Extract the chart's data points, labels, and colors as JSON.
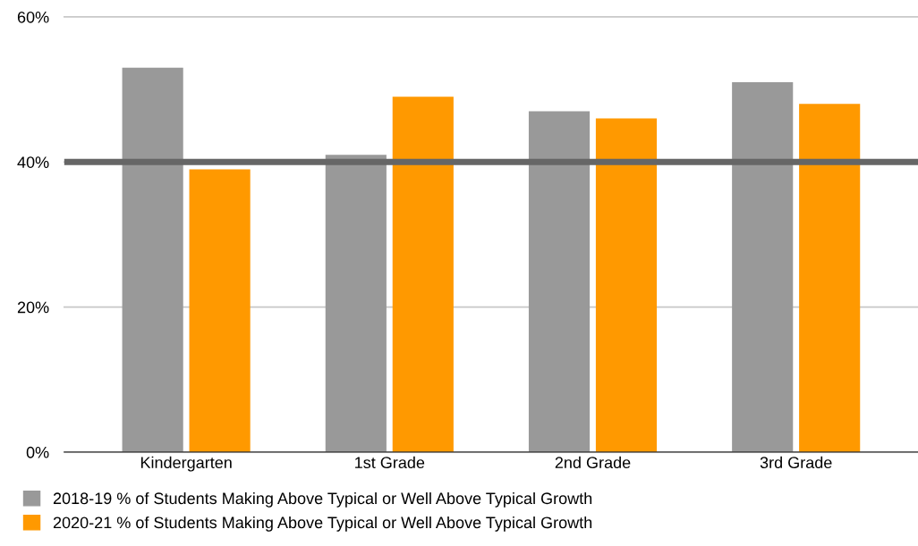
{
  "chart_data": {
    "type": "bar",
    "categories": [
      "Kindergarten",
      "1st Grade",
      "2nd Grade",
      "3rd Grade"
    ],
    "series": [
      {
        "name": "2018-19 % of Students Making Above Typical or Well Above Typical Growth",
        "color": "#999999",
        "values": [
          53,
          41,
          47,
          51
        ]
      },
      {
        "name": "2020-21 % of Students Making Above Typical or Well Above Typical Growth",
        "color": "#ff9900",
        "values": [
          39,
          49,
          46,
          48
        ]
      }
    ],
    "ylim": [
      0,
      60
    ],
    "yticks": [
      {
        "value": 0,
        "label": "0%"
      },
      {
        "value": 20,
        "label": "20%"
      },
      {
        "value": 40,
        "label": "40%"
      },
      {
        "value": 60,
        "label": "60%"
      }
    ],
    "grid": "y",
    "legend": "bottom",
    "ref_lines": [
      {
        "axis": "y",
        "value": 40,
        "color": "#666666"
      }
    ]
  }
}
